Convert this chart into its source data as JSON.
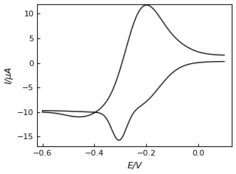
{
  "xlabel": "E/V",
  "ylabel": "I/μA",
  "xlim": [
    -0.62,
    0.13
  ],
  "ylim": [
    -17,
    12
  ],
  "xticks": [
    -0.6,
    -0.4,
    -0.2,
    0.0
  ],
  "yticks": [
    -15,
    -10,
    -5,
    0,
    5,
    10
  ],
  "line_color": "#000000",
  "background_color": "#ffffff",
  "figsize": [
    3.31,
    2.45
  ],
  "dpi": 100
}
